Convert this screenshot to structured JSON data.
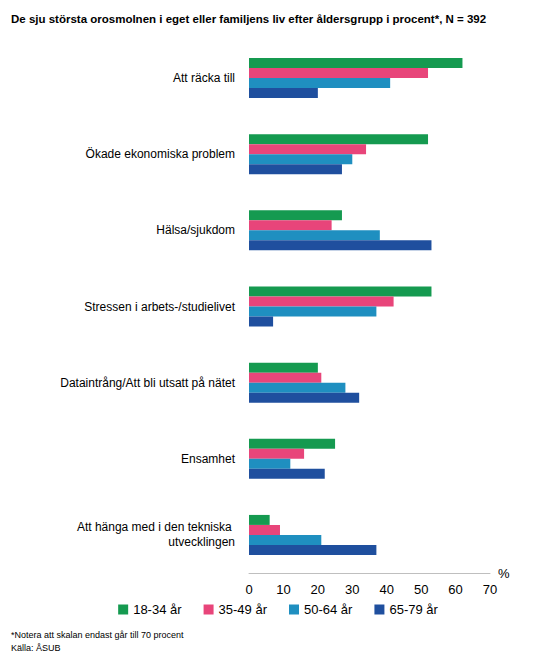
{
  "chart_data": {
    "type": "bar",
    "orientation": "horizontal",
    "title": "De sju största orosmolnen i eget eller familjens liv efter åldersgrupp i procent*, N = 392",
    "xlabel": "%",
    "footnote": "*Notera att skalan endast går till 70 procent",
    "source": "Källa: ÅSUB",
    "categories": [
      "Att räcka till",
      "Ökade ekonomiska problem",
      "Hälsa/sjukdom",
      "Stressen i arbets-/studielivet",
      "Dataintrång/Att bli utsatt på nätet",
      "Ensamhet",
      "Att hänga med i den tekniska utvecklingen"
    ],
    "series": [
      {
        "name": "18-34 år",
        "color": "#159a50",
        "values": [
          62,
          52,
          27,
          53,
          20,
          25,
          6
        ]
      },
      {
        "name": "35-49 år",
        "color": "#e8457a",
        "values": [
          52,
          34,
          24,
          42,
          21,
          16,
          9
        ]
      },
      {
        "name": "50-64 år",
        "color": "#1f8fc0",
        "values": [
          41,
          30,
          38,
          37,
          28,
          12,
          21
        ]
      },
      {
        "name": "65-79 år",
        "color": "#1f4f9e",
        "values": [
          20,
          27,
          53,
          7,
          32,
          22,
          37
        ]
      }
    ],
    "xlim": [
      0,
      70
    ],
    "xticks": [
      0,
      10,
      20,
      30,
      40,
      50,
      60,
      70
    ],
    "grid": false,
    "legend": "bottom"
  }
}
